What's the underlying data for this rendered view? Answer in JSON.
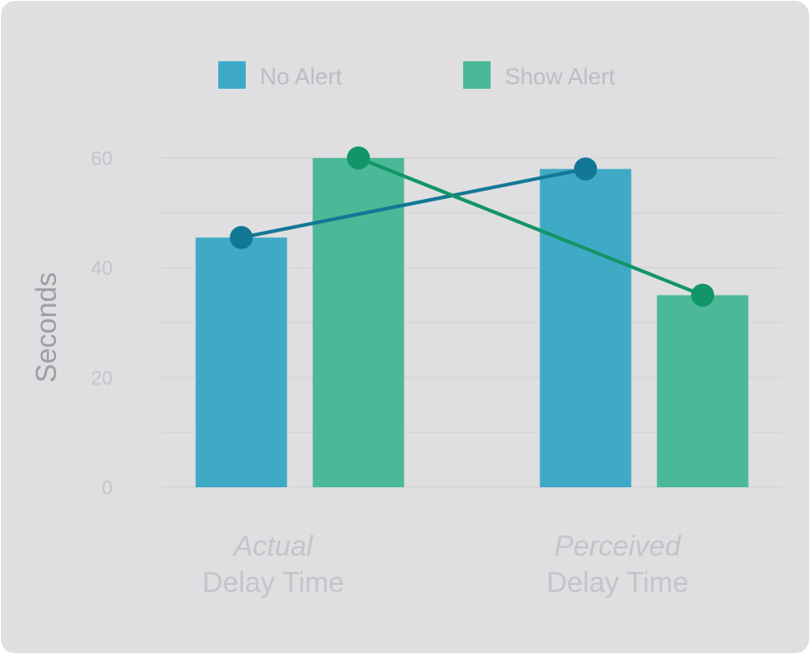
{
  "chart_data": {
    "type": "bar",
    "categories": [
      {
        "emph": "Actual",
        "sub": "Delay Time"
      },
      {
        "emph": "Perceived",
        "sub": "Delay Time"
      }
    ],
    "series": [
      {
        "name": "No Alert",
        "color": "#3faac6",
        "line_color": "#137895",
        "values": [
          45.5,
          58
        ]
      },
      {
        "name": "Show Alert",
        "color": "#4bb997",
        "line_color": "#129568",
        "values": [
          60,
          35
        ]
      }
    ],
    "overlay_lines": "each series' values are also joined by a line with circular markers",
    "ylabel": "Seconds",
    "ylim": [
      0,
      60
    ],
    "yticks": [
      0,
      20,
      40,
      60
    ],
    "grid": "horizontal, every 10",
    "legend": "top-center"
  }
}
